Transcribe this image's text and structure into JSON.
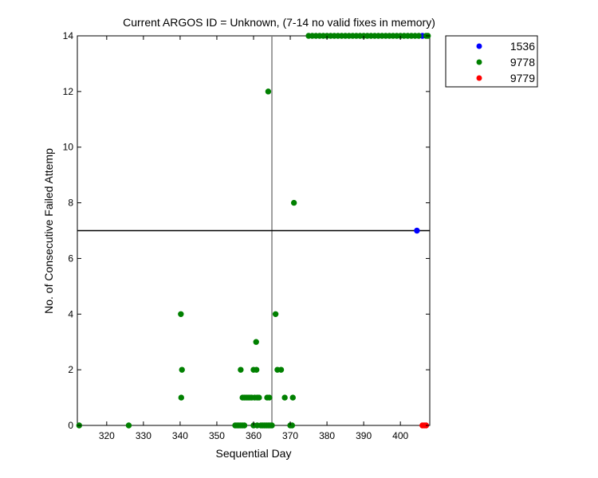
{
  "chart_data": {
    "type": "scatter",
    "title": "Current ARGOS ID = Unknown,  (7-14 no valid fixes in memory)",
    "xlabel": "Sequential Day",
    "ylabel": "No. of Consecutive Failed Attemp",
    "xlim": [
      312,
      408
    ],
    "ylim": [
      0,
      14
    ],
    "xticks": [
      320,
      330,
      340,
      350,
      360,
      370,
      380,
      390,
      400
    ],
    "yticks": [
      0,
      2,
      4,
      6,
      8,
      10,
      12,
      14
    ],
    "grid": false,
    "legend_position": "outside-top-right",
    "reference_lines": [
      {
        "orientation": "vertical",
        "x": 365,
        "color": "#808080"
      },
      {
        "orientation": "horizontal",
        "y": 7,
        "color": "#000000"
      }
    ],
    "series": [
      {
        "name": "1536",
        "color": "#0000ff",
        "points": [
          [
            404.5,
            7
          ],
          [
            406,
            14
          ]
        ]
      },
      {
        "name": "9778",
        "color": "#008000",
        "points": [
          [
            312.5,
            0
          ],
          [
            326,
            0
          ],
          [
            340.2,
            4
          ],
          [
            340.5,
            2
          ],
          [
            340.3,
            1
          ],
          [
            355,
            0
          ],
          [
            355.5,
            0
          ],
          [
            356,
            0
          ],
          [
            356.5,
            0
          ],
          [
            357,
            0
          ],
          [
            357.5,
            0
          ],
          [
            356.5,
            2
          ],
          [
            357,
            1
          ],
          [
            357.5,
            1
          ],
          [
            358,
            1
          ],
          [
            358.5,
            1
          ],
          [
            359,
            1
          ],
          [
            359.5,
            1
          ],
          [
            360,
            2
          ],
          [
            360.8,
            2
          ],
          [
            360.7,
            3
          ],
          [
            360.3,
            1
          ],
          [
            361,
            1
          ],
          [
            361.5,
            1
          ],
          [
            360,
            0
          ],
          [
            361,
            0
          ],
          [
            362,
            0
          ],
          [
            362.5,
            0
          ],
          [
            363,
            0
          ],
          [
            363.5,
            0
          ],
          [
            364,
            0
          ],
          [
            364.5,
            0
          ],
          [
            365,
            0
          ],
          [
            364,
            12
          ],
          [
            363.7,
            1
          ],
          [
            364.3,
            1
          ],
          [
            366,
            4
          ],
          [
            366.5,
            2
          ],
          [
            367.5,
            2
          ],
          [
            368.5,
            1
          ],
          [
            370.7,
            1
          ],
          [
            370,
            0
          ],
          [
            370.5,
            0
          ],
          [
            371,
            8
          ],
          [
            375,
            14
          ],
          [
            376,
            14
          ],
          [
            377,
            14
          ],
          [
            378,
            14
          ],
          [
            379,
            14
          ],
          [
            380,
            14
          ],
          [
            381,
            14
          ],
          [
            382,
            14
          ],
          [
            383,
            14
          ],
          [
            384,
            14
          ],
          [
            385,
            14
          ],
          [
            386,
            14
          ],
          [
            387,
            14
          ],
          [
            388,
            14
          ],
          [
            389,
            14
          ],
          [
            390,
            14
          ],
          [
            391,
            14
          ],
          [
            392,
            14
          ],
          [
            393,
            14
          ],
          [
            394,
            14
          ],
          [
            395,
            14
          ],
          [
            396,
            14
          ],
          [
            397,
            14
          ],
          [
            398,
            14
          ],
          [
            399,
            14
          ],
          [
            400,
            14
          ],
          [
            401,
            14
          ],
          [
            402,
            14
          ],
          [
            403,
            14
          ],
          [
            404,
            14
          ],
          [
            405,
            14
          ],
          [
            407,
            14
          ],
          [
            407.5,
            14
          ]
        ]
      },
      {
        "name": "9779",
        "color": "#ff0000",
        "points": [
          [
            406,
            0
          ],
          [
            406.5,
            0
          ],
          [
            407,
            0
          ]
        ]
      }
    ]
  }
}
